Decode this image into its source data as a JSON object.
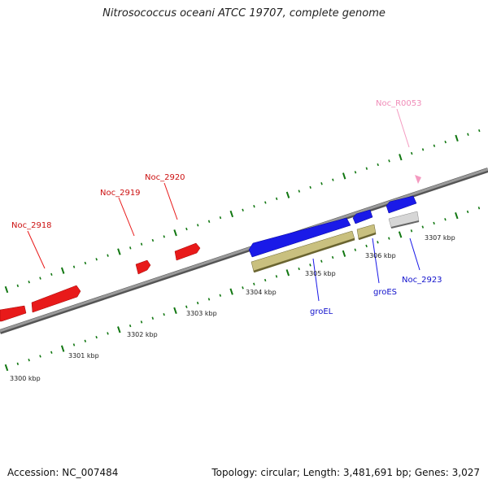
{
  "title": "Nitrosococcus oceani ATCC 19707, complete genome",
  "footer": {
    "accession": "Accession: NC_007484",
    "summary": "Topology: circular; Length: 3,481,691 bp; Genes: 3,027"
  },
  "colors": {
    "forward_gene": "#ee1111",
    "reverse_gene": "#1111dd",
    "rna_gene": "#b8b070",
    "pseudo_gene": "#c8c8c8",
    "ncrna_label": "#f49ac0",
    "tick": "#117711",
    "backbone": "#888888"
  },
  "scale_labels": [
    "3300 kbp",
    "3301 kbp",
    "3302 kbp",
    "3303 kbp",
    "3304 kbp",
    "3305 kbp",
    "3306 kbp",
    "3307 kbp"
  ],
  "gene_labels": {
    "noc_2918": "Noc_2918",
    "noc_2919": "Noc_2919",
    "noc_2920": "Noc_2920",
    "noc_r0053": "Noc_R0053",
    "groel": "groEL",
    "groes": "groES",
    "noc_2923": "Noc_2923"
  }
}
